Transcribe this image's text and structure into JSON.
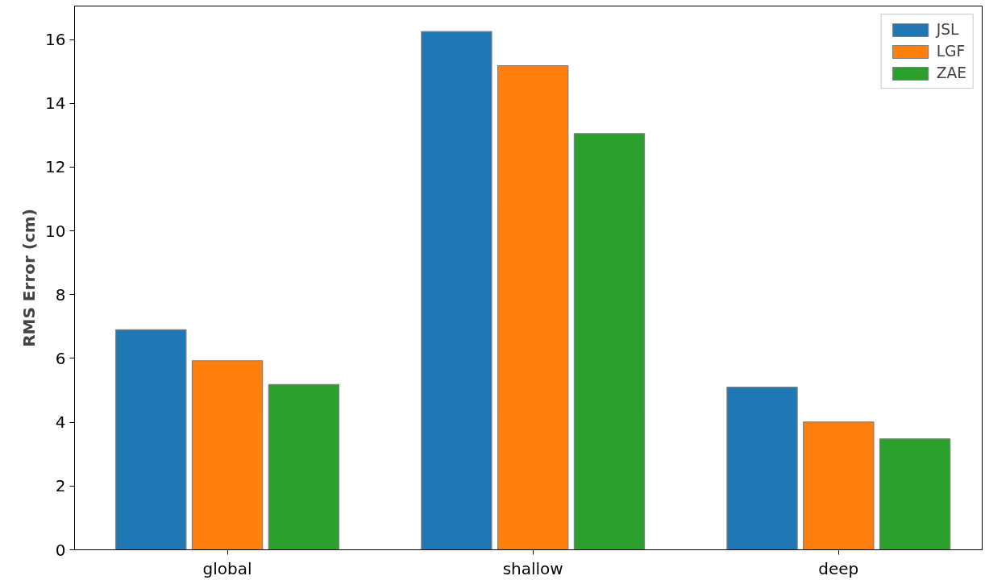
{
  "chart_data": {
    "type": "bar",
    "ylabel": "RMS Error (cm)",
    "categories": [
      "global",
      "shallow",
      "deep"
    ],
    "series": [
      {
        "name": "JSL",
        "color": "#1f77b4",
        "values": [
          6.9,
          16.25,
          5.1
        ]
      },
      {
        "name": "LGF",
        "color": "#ff7f0e",
        "values": [
          5.93,
          15.18,
          4.01
        ]
      },
      {
        "name": "ZAE",
        "color": "#2ca02c",
        "values": [
          5.18,
          13.05,
          3.48
        ]
      }
    ],
    "ylim": [
      0,
      17.05
    ],
    "yticks": [
      0,
      2,
      4,
      6,
      8,
      10,
      12,
      14,
      16
    ],
    "grid": false,
    "legend": "top right"
  }
}
